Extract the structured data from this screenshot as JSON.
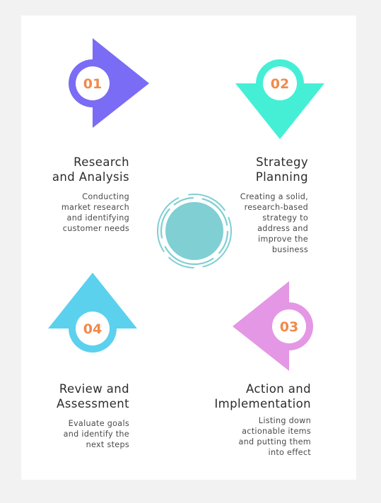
{
  "steps": [
    {
      "number": "01",
      "title": "Research\nand Analysis",
      "description": "Conducting\nmarket research\nand identifying\ncustomer needs",
      "color": "#7a6cf4",
      "shape": "triangle-right"
    },
    {
      "number": "02",
      "title": "Strategy\nPlanning",
      "description": "Creating a solid,\nresearch-based\nstrategy to\naddress and\nimprove the\nbusiness",
      "color": "#45efd6",
      "shape": "triangle-down"
    },
    {
      "number": "03",
      "title": "Action and\nImplementation",
      "description": "Listing down\nactionable items\nand putting them\ninto effect",
      "color": "#e497e4",
      "shape": "triangle-left"
    },
    {
      "number": "04",
      "title": "Review and\nAssessment",
      "description": "Evaluate goals\nand identify the\nnext steps",
      "color": "#5bd1ee",
      "shape": "triangle-up"
    }
  ],
  "center": {
    "color": "#7fcfd3",
    "icon": "center-cycle-circle"
  },
  "colors": {
    "number_text": "#f0894a",
    "card_background": "#ffffff",
    "page_background": "#f2f2f3"
  }
}
